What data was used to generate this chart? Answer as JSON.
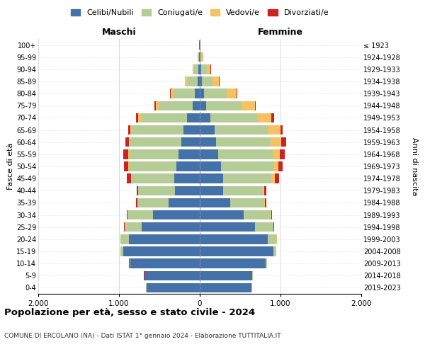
{
  "age_groups": [
    "0-4",
    "5-9",
    "10-14",
    "15-19",
    "20-24",
    "25-29",
    "30-34",
    "35-39",
    "40-44",
    "45-49",
    "50-54",
    "55-59",
    "60-64",
    "65-69",
    "70-74",
    "75-79",
    "80-84",
    "85-89",
    "90-94",
    "95-99",
    "100+"
  ],
  "birth_years": [
    "2019-2023",
    "2014-2018",
    "2009-2013",
    "2004-2008",
    "1999-2003",
    "1994-1998",
    "1989-1993",
    "1984-1988",
    "1979-1983",
    "1974-1978",
    "1969-1973",
    "1964-1968",
    "1959-1963",
    "1954-1958",
    "1949-1953",
    "1944-1948",
    "1939-1943",
    "1934-1938",
    "1929-1933",
    "1924-1928",
    "≤ 1923"
  ],
  "males": {
    "celibi": [
      660,
      680,
      860,
      950,
      880,
      720,
      580,
      390,
      310,
      320,
      290,
      260,
      230,
      200,
      160,
      90,
      60,
      30,
      20,
      10,
      5
    ],
    "coniugati": [
      5,
      5,
      10,
      30,
      100,
      210,
      310,
      380,
      450,
      530,
      590,
      620,
      630,
      640,
      570,
      420,
      270,
      120,
      50,
      15,
      5
    ],
    "vedovi": [
      2,
      2,
      2,
      2,
      2,
      2,
      2,
      2,
      2,
      5,
      5,
      10,
      15,
      20,
      30,
      30,
      30,
      30,
      20,
      5,
      2
    ],
    "divorziati": [
      2,
      2,
      2,
      2,
      2,
      5,
      10,
      15,
      20,
      45,
      50,
      55,
      50,
      25,
      30,
      20,
      5,
      5,
      2,
      0,
      0
    ]
  },
  "females": {
    "nubili": [
      640,
      650,
      820,
      910,
      840,
      680,
      540,
      380,
      290,
      290,
      260,
      230,
      200,
      180,
      130,
      80,
      50,
      30,
      15,
      10,
      5
    ],
    "coniugate": [
      5,
      5,
      12,
      35,
      110,
      230,
      340,
      420,
      490,
      600,
      650,
      670,
      680,
      660,
      580,
      440,
      280,
      130,
      70,
      20,
      5
    ],
    "vedove": [
      2,
      2,
      2,
      2,
      3,
      5,
      5,
      10,
      20,
      40,
      60,
      90,
      130,
      160,
      180,
      160,
      130,
      80,
      50,
      10,
      3
    ],
    "divorziate": [
      2,
      2,
      2,
      2,
      2,
      5,
      10,
      15,
      25,
      50,
      55,
      60,
      60,
      30,
      30,
      15,
      5,
      5,
      2,
      0,
      0
    ]
  },
  "colors": {
    "celibi": "#4472a8",
    "coniugati": "#b5cc96",
    "vedovi": "#f5c165",
    "divorziati": "#cc2222"
  },
  "xlim": 2000,
  "title": "Popolazione per età, sesso e stato civile - 2024",
  "subtitle": "COMUNE DI ERCOLANO (NA) - Dati ISTAT 1° gennaio 2024 - Elaborazione TUTTITALIA.IT",
  "xlabel_left": "Maschi",
  "xlabel_right": "Femmine",
  "ylabel_left": "Fasce di età",
  "ylabel_right": "Anni di nascita",
  "legend_labels": [
    "Celibi/Nubili",
    "Coniugati/e",
    "Vedovi/e",
    "Divorziati/e"
  ],
  "xtick_labels": [
    "2.000",
    "1.000",
    "0",
    "1.000",
    "2.000"
  ],
  "xtick_values": [
    -2000,
    -1000,
    0,
    1000,
    2000
  ]
}
